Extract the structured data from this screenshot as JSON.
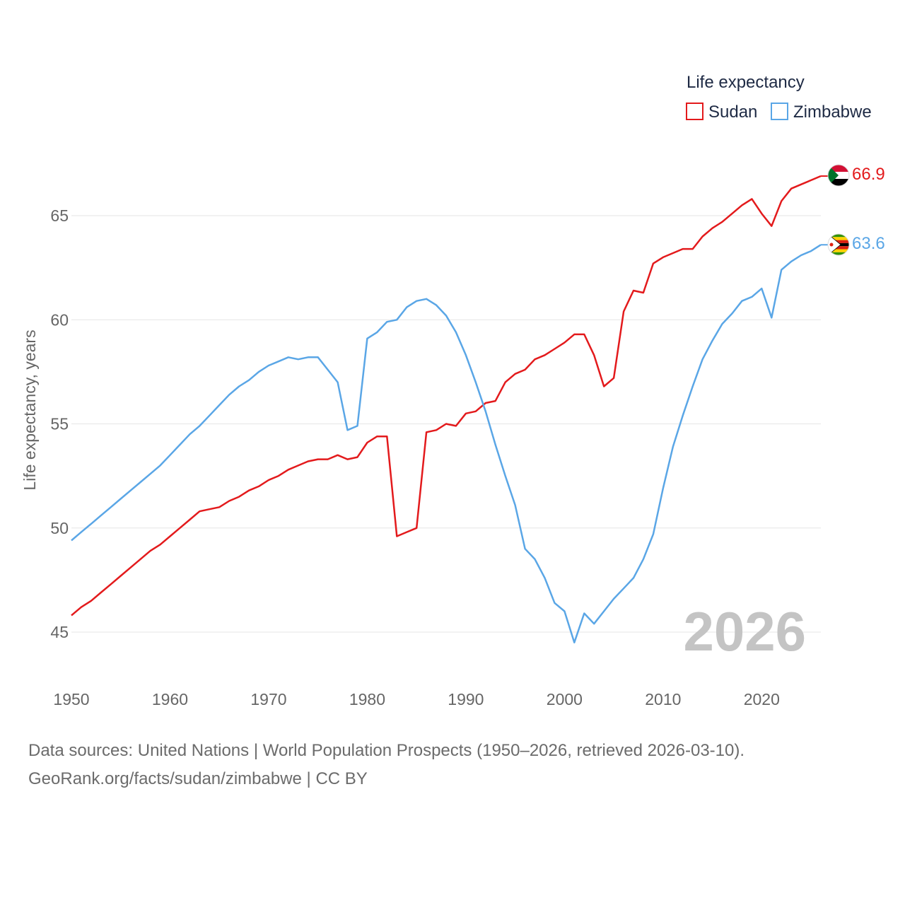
{
  "chart_data": {
    "type": "line",
    "ylabel": "Life expectancy, years",
    "xlabel": "",
    "xlim": [
      1950,
      2026
    ],
    "ylim": [
      43,
      68
    ],
    "x_ticks": [
      1950,
      1960,
      1970,
      1980,
      1990,
      2000,
      2010,
      2020
    ],
    "y_ticks": [
      45,
      50,
      55,
      60,
      65
    ],
    "grid": true,
    "legend_title": "Life expectancy",
    "legend_position": "top-right",
    "year_label": "2026",
    "x": [
      1950,
      1951,
      1952,
      1953,
      1954,
      1955,
      1956,
      1957,
      1958,
      1959,
      1960,
      1961,
      1962,
      1963,
      1964,
      1965,
      1966,
      1967,
      1968,
      1969,
      1970,
      1971,
      1972,
      1973,
      1974,
      1975,
      1976,
      1977,
      1978,
      1979,
      1980,
      1981,
      1982,
      1983,
      1984,
      1985,
      1986,
      1987,
      1988,
      1989,
      1990,
      1991,
      1992,
      1993,
      1994,
      1995,
      1996,
      1997,
      1998,
      1999,
      2000,
      2001,
      2002,
      2003,
      2004,
      2005,
      2006,
      2007,
      2008,
      2009,
      2010,
      2011,
      2012,
      2013,
      2014,
      2015,
      2016,
      2017,
      2018,
      2019,
      2020,
      2021,
      2022,
      2023,
      2024,
      2025,
      2026
    ],
    "series": [
      {
        "name": "Sudan",
        "color": "#e31a1c",
        "end_label": "66.9",
        "flag": "sudan-flag",
        "values": [
          45.8,
          46.2,
          46.5,
          46.9,
          47.3,
          47.7,
          48.1,
          48.5,
          48.9,
          49.2,
          49.6,
          50.0,
          50.4,
          50.8,
          50.9,
          51.0,
          51.3,
          51.5,
          51.8,
          52.0,
          52.3,
          52.5,
          52.8,
          53.0,
          53.2,
          53.3,
          53.3,
          53.5,
          53.3,
          53.4,
          54.1,
          54.4,
          54.4,
          49.6,
          49.8,
          50.0,
          54.6,
          54.7,
          55.0,
          54.9,
          55.5,
          55.6,
          56.0,
          56.1,
          57.0,
          57.4,
          57.6,
          58.1,
          58.3,
          58.6,
          58.9,
          59.3,
          59.3,
          58.3,
          56.8,
          57.2,
          60.4,
          61.4,
          61.3,
          62.7,
          63.0,
          63.2,
          63.4,
          63.4,
          64.0,
          64.4,
          64.7,
          65.1,
          65.5,
          65.8,
          65.1,
          64.5,
          65.7,
          66.3,
          66.5,
          66.7,
          66.9
        ]
      },
      {
        "name": "Zimbabwe",
        "color": "#5aa6e6",
        "end_label": "63.6",
        "flag": "zimbabwe-flag",
        "values": [
          49.4,
          49.8,
          50.2,
          50.6,
          51.0,
          51.4,
          51.8,
          52.2,
          52.6,
          53.0,
          53.5,
          54.0,
          54.5,
          54.9,
          55.4,
          55.9,
          56.4,
          56.8,
          57.1,
          57.5,
          57.8,
          58.0,
          58.2,
          58.1,
          58.2,
          58.2,
          57.6,
          57.0,
          54.7,
          54.9,
          59.1,
          59.4,
          59.9,
          60.0,
          60.6,
          60.9,
          61.0,
          60.7,
          60.2,
          59.4,
          58.3,
          57.0,
          55.6,
          54.0,
          52.5,
          51.1,
          49.0,
          48.5,
          47.6,
          46.4,
          46.0,
          44.5,
          45.9,
          45.4,
          46.0,
          46.6,
          47.1,
          47.6,
          48.5,
          49.7,
          51.9,
          53.9,
          55.4,
          56.8,
          58.1,
          59.0,
          59.8,
          60.3,
          60.9,
          61.1,
          61.5,
          60.1,
          62.4,
          62.8,
          63.1,
          63.3,
          63.6
        ]
      }
    ]
  },
  "footer": {
    "source_line": "Data sources: United Nations | World Population Prospects (1950–2026, retrieved 2026-03-10).",
    "license_line": "GeoRank.org/facts/sudan/zimbabwe | CC BY"
  }
}
